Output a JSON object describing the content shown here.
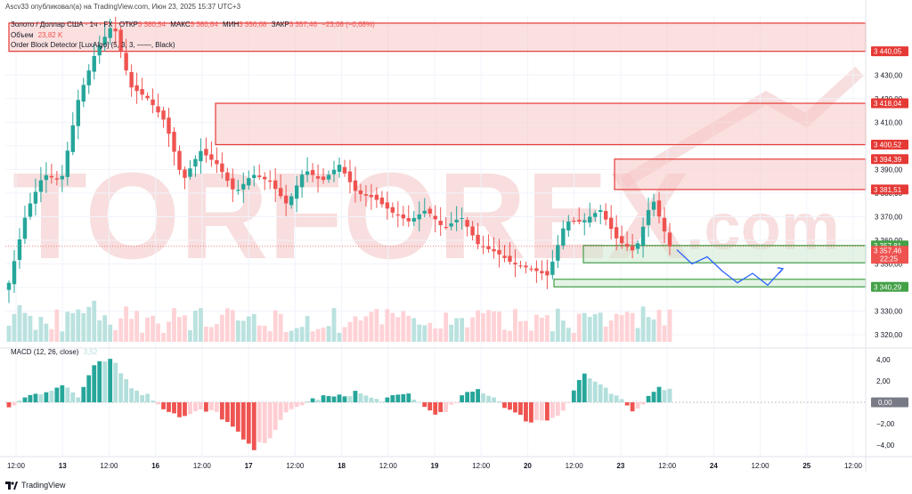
{
  "header": {
    "published": "Ascv33 опубликовал(а) на TradingView.com, Июн 23, 2025 15:37 UTC+3",
    "symbol_line": "Золото / Доллар США · 1ч · FX",
    "ohlc": {
      "open_label": "ОТКР",
      "open": "3 380,54",
      "high_label": "МАКС",
      "high": "3 380,84",
      "low_label": "МИН",
      "low": "3 356,68",
      "close_label": "ЗАКР",
      "close": "3 357,46",
      "change": "−23,08 (−0,68%)"
    },
    "volume_label": "Объем",
    "volume_value": "23,82 K",
    "indicator": "Order Block Detector [LuxAlgo] (5, 3, 3, ——, Black)"
  },
  "watermark": {
    "text": "TORFOREX",
    "suffix": ".com"
  },
  "footer": {
    "brand": "TradingView"
  },
  "colors": {
    "up": "#26a69a",
    "down": "#ef5350",
    "up_light": "#b2dfdb",
    "down_light": "#ffcdd2",
    "bear_zone_fill": "#f7c6c6",
    "bear_zone_line": "#e53935",
    "bull_zone_fill": "#cde9cf",
    "bull_zone_line": "#43a047",
    "projection": "#2962ff"
  },
  "chart_data": [
    {
      "type": "candlestick",
      "symbol": "XAUUSD",
      "timeframe": "1h",
      "price_axis_ticks": [
        3320,
        3330,
        3340,
        3350,
        3360,
        3370,
        3380,
        3390,
        3400,
        3410,
        3420,
        3430,
        3440
      ],
      "price_axis_tick_labels": [
        "3 320,00",
        "3 330,00",
        "3 340,00",
        "3 350,00",
        "3 360,00",
        "3 370,00",
        "3 380,00",
        "3 390,00",
        "3 400,00",
        "3 410,00",
        "3 420,00",
        "3 430,00",
        "3 440,00"
      ],
      "ylim": [
        3314,
        3455
      ],
      "time_axis_labels": [
        "12:00",
        "13",
        "12:00",
        "16",
        "12:00",
        "17",
        "12:00",
        "18",
        "12:00",
        "19",
        "12:00",
        "20",
        "12:00",
        "23",
        "12:00",
        "24",
        "12:00",
        "25",
        "12:00"
      ],
      "anchors": [
        3342,
        3372,
        3388,
        3385,
        3420,
        3440,
        3452,
        3425,
        3420,
        3410,
        3385,
        3398,
        3392,
        3380,
        3388,
        3385,
        3375,
        3390,
        3385,
        3392,
        3380,
        3378,
        3372,
        3368,
        3373,
        3365,
        3370,
        3358,
        3355,
        3350,
        3348,
        3345,
        3368,
        3368,
        3373,
        3360,
        3355,
        3378,
        3357.46
      ],
      "candle_count": 125,
      "price_labels": [
        {
          "value": 3440.05,
          "label": "3 440,05",
          "kind": "bear"
        },
        {
          "value": 3418.04,
          "label": "3 418,04",
          "kind": "bear"
        },
        {
          "value": 3400.52,
          "label": "3 400,52",
          "kind": "bear"
        },
        {
          "value": 3394.39,
          "label": "3 394,39",
          "kind": "bear"
        },
        {
          "value": 3381.51,
          "label": "3 381,51",
          "kind": "bear"
        },
        {
          "value": 3357.81,
          "label": "3 357,81",
          "kind": "bull"
        },
        {
          "value": 3357.46,
          "label": "3 357,46",
          "kind": "last"
        },
        {
          "value": 3340.29,
          "label": "3 340,29",
          "kind": "bull"
        }
      ],
      "countdown": "22:25",
      "order_blocks": [
        {
          "kind": "bearish",
          "top": 3452,
          "bottom": 3440.05
        },
        {
          "kind": "bearish",
          "top": 3418.04,
          "bottom": 3400.52
        },
        {
          "kind": "bearish",
          "top": 3394.39,
          "bottom": 3381.51
        },
        {
          "kind": "bullish",
          "top": 3357.81,
          "bottom": 3350.5
        },
        {
          "kind": "bullish",
          "top": 3343.5,
          "bottom": 3340.29
        }
      ],
      "projection_path": [
        3356,
        3350,
        3353,
        3347,
        3342,
        3346,
        3341,
        3348
      ],
      "volume": {
        "label": "Объем",
        "last": "23,82 K"
      }
    },
    {
      "type": "bar",
      "name": "MACD",
      "title": "MACD (12, 26, close)",
      "title_value": "3,52",
      "ylim": [
        -5,
        5
      ],
      "tick_values": [
        4,
        2,
        0,
        -2,
        -4
      ],
      "tick_labels": [
        "4,00",
        "2,00",
        "0,00",
        "−2,00",
        "−4,00"
      ],
      "zero_label": "0,00",
      "anchors": [
        -0.5,
        0.5,
        1.0,
        1.6,
        0.5,
        4.0,
        4.1,
        1.4,
        0.6,
        -0.6,
        -1.4,
        -0.8,
        -1.0,
        -2.6,
        -4.5,
        -3.2,
        -1.0,
        0.0,
        0.5,
        0.5,
        1.0,
        0.2,
        0.4,
        0.8,
        -0.6,
        -1.2,
        0.5,
        1.2,
        0.4,
        -1.0,
        -1.8,
        -1.6,
        -0.6,
        2.8,
        1.5,
        0.4,
        -1.0,
        1.2,
        1.4
      ]
    }
  ]
}
